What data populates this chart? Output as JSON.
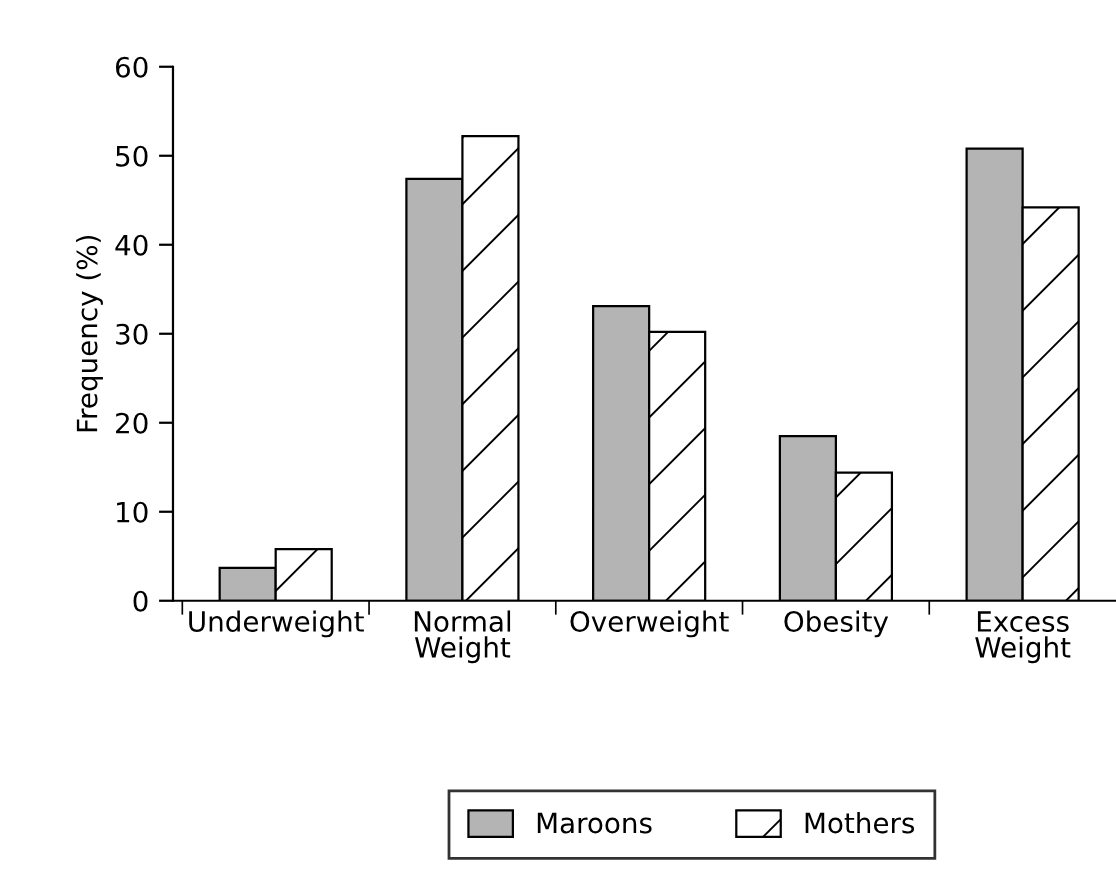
{
  "chart_data": {
    "type": "bar",
    "ylabel": "Frequency (%)",
    "categories": [
      "Underweight",
      "Normal\nWeight",
      "Overweight",
      "Obesity",
      "Excess\nWeight"
    ],
    "series": [
      {
        "name": "Maroons",
        "color": "#b4b4b4",
        "values": [
          3.7,
          47.4,
          33.1,
          18.5,
          50.8
        ]
      },
      {
        "name": "Mothers",
        "color": "#ffffff",
        "values": [
          5.8,
          52.2,
          30.2,
          14.4,
          44.2
        ]
      }
    ],
    "ylim": [
      0,
      60
    ],
    "yticks": [
      0,
      10,
      20,
      30,
      40,
      50,
      60
    ],
    "grid": false,
    "legend": "bottom"
  }
}
